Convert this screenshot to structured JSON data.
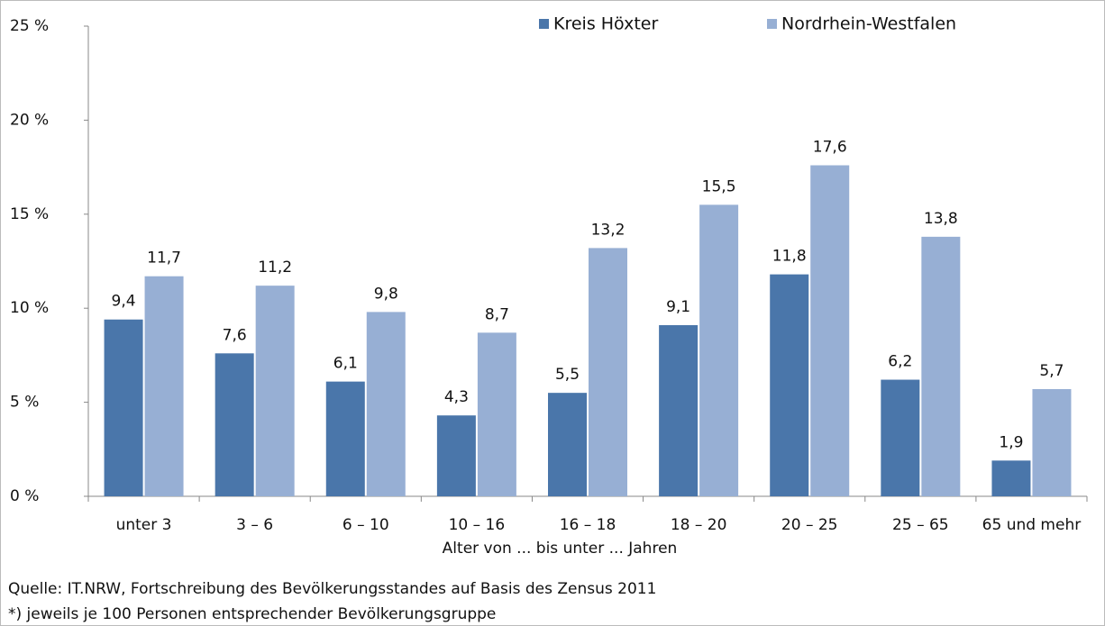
{
  "chart_data": {
    "type": "bar",
    "categories": [
      "unter 3",
      "3 – 6",
      "6 – 10",
      "10 – 16",
      "16 – 18",
      "18 – 20",
      "20 – 25",
      "25 – 65",
      "65 und mehr"
    ],
    "series": [
      {
        "name": "Kreis Höxter",
        "color": "#4a76aa",
        "values": [
          9.4,
          7.6,
          6.1,
          4.3,
          5.5,
          9.1,
          11.8,
          6.2,
          1.9
        ],
        "value_labels": [
          "9,4",
          "7,6",
          "6,1",
          "4,3",
          "5,5",
          "9,1",
          "11,8",
          "6,2",
          "1,9"
        ]
      },
      {
        "name": "Nordrhein-Westfalen",
        "color": "#97afd4",
        "values": [
          11.7,
          11.2,
          9.8,
          8.7,
          13.2,
          15.5,
          17.6,
          13.8,
          5.7
        ],
        "value_labels": [
          "11,7",
          "11,2",
          "9,8",
          "8,7",
          "13,2",
          "15,5",
          "17,6",
          "13,8",
          "5,7"
        ]
      }
    ],
    "x_label": "Alter von ... bis unter ... Jahren",
    "ylim": [
      0,
      25
    ],
    "yticks": [
      {
        "value": 0,
        "label": "0 %"
      },
      {
        "value": 5,
        "label": "5 %"
      },
      {
        "value": 10,
        "label": "10 %"
      },
      {
        "value": 15,
        "label": "15 %"
      },
      {
        "value": 20,
        "label": "20 %"
      },
      {
        "value": 25,
        "label": "25 %"
      }
    ],
    "grid": false,
    "legend": "top",
    "notes": [
      "Quelle: IT.NRW, Fortschreibung des Bevölkerungsstandes auf Basis des Zensus 2011",
      "*) jeweils je 100 Personen entsprechender Bevölkerungsgruppe"
    ]
  }
}
